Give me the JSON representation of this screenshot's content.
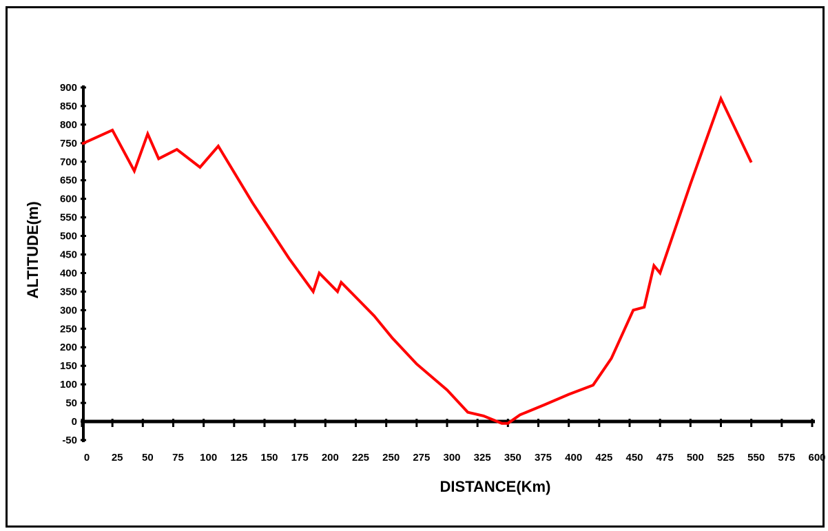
{
  "chart_data": {
    "type": "line",
    "title": "",
    "xlabel": "DISTANCE(Km)",
    "ylabel": "ALTITUDE(m)",
    "xlim": [
      0,
      600
    ],
    "ylim": [
      -50,
      900
    ],
    "x_ticks": [
      0,
      25,
      50,
      75,
      100,
      125,
      150,
      175,
      200,
      225,
      250,
      275,
      300,
      325,
      350,
      375,
      400,
      425,
      450,
      475,
      500,
      525,
      550,
      575,
      600
    ],
    "y_ticks": [
      900,
      850,
      800,
      750,
      700,
      650,
      600,
      550,
      500,
      450,
      400,
      350,
      300,
      250,
      200,
      150,
      100,
      50,
      0,
      -50
    ],
    "grid": false,
    "legend": "none",
    "series": [
      {
        "color": "#ff0000",
        "x": [
          0,
          25,
          43,
          54,
          63,
          78,
          97,
          112,
          140,
          170,
          190,
          195,
          210,
          213,
          240,
          255,
          275,
          300,
          317,
          330,
          345,
          350,
          360,
          380,
          400,
          420,
          435,
          453,
          462,
          470,
          475,
          500,
          525,
          550
        ],
        "y": [
          748,
          785,
          675,
          775,
          708,
          733,
          685,
          742,
          590,
          440,
          350,
          400,
          350,
          375,
          285,
          225,
          155,
          85,
          25,
          15,
          -5,
          -5,
          18,
          45,
          73,
          98,
          170,
          300,
          308,
          420,
          400,
          640,
          870,
          698
        ]
      }
    ]
  }
}
